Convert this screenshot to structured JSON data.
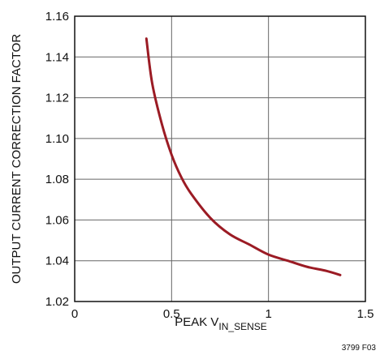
{
  "chart_data": {
    "type": "line",
    "xlabel_main": "PEAK V",
    "xlabel_sub": "IN_SENSE",
    "ylabel": "OUTPUT CURRENT CORRECTION FACTOR",
    "figure_id": "3799 F03",
    "xlim": [
      0,
      1.5
    ],
    "ylim": [
      1.02,
      1.16
    ],
    "x_ticks": [
      "0",
      "0.5",
      "1",
      "1.5"
    ],
    "y_ticks": [
      "1.02",
      "1.04",
      "1.06",
      "1.08",
      "1.10",
      "1.12",
      "1.14",
      "1.16"
    ],
    "grid": true,
    "series": [
      {
        "color": "#9b1b24",
        "points": [
          [
            0.37,
            1.149
          ],
          [
            0.4,
            1.127
          ],
          [
            0.45,
            1.107
          ],
          [
            0.5,
            1.092
          ],
          [
            0.55,
            1.081
          ],
          [
            0.6,
            1.073
          ],
          [
            0.7,
            1.061
          ],
          [
            0.8,
            1.053
          ],
          [
            0.9,
            1.048
          ],
          [
            1.0,
            1.043
          ],
          [
            1.1,
            1.04
          ],
          [
            1.2,
            1.037
          ],
          [
            1.3,
            1.035
          ],
          [
            1.37,
            1.033
          ]
        ]
      }
    ]
  }
}
